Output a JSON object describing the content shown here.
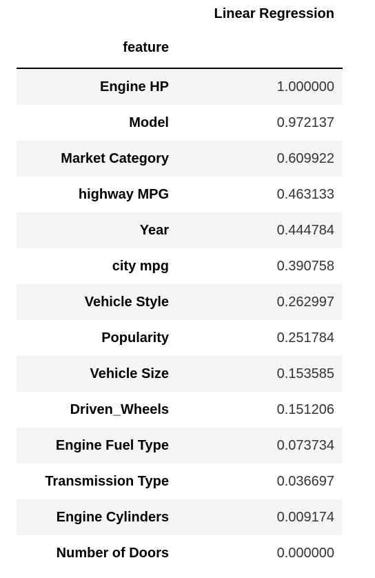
{
  "table": {
    "column_header": "Linear Regression",
    "index_name": "feature",
    "rows": [
      {
        "feature": "Engine HP",
        "value": "1.000000"
      },
      {
        "feature": "Model",
        "value": "0.972137"
      },
      {
        "feature": "Market Category",
        "value": "0.609922"
      },
      {
        "feature": "highway MPG",
        "value": "0.463133"
      },
      {
        "feature": "Year",
        "value": "0.444784"
      },
      {
        "feature": "city mpg",
        "value": "0.390758"
      },
      {
        "feature": "Vehicle Style",
        "value": "0.262997"
      },
      {
        "feature": "Popularity",
        "value": "0.251784"
      },
      {
        "feature": "Vehicle Size",
        "value": "0.153585"
      },
      {
        "feature": "Driven_Wheels",
        "value": "0.151206"
      },
      {
        "feature": "Engine Fuel Type",
        "value": "0.073734"
      },
      {
        "feature": "Transmission Type",
        "value": "0.036697"
      },
      {
        "feature": "Engine Cylinders",
        "value": "0.009174"
      },
      {
        "feature": "Number of Doors",
        "value": "0.000000"
      }
    ]
  }
}
